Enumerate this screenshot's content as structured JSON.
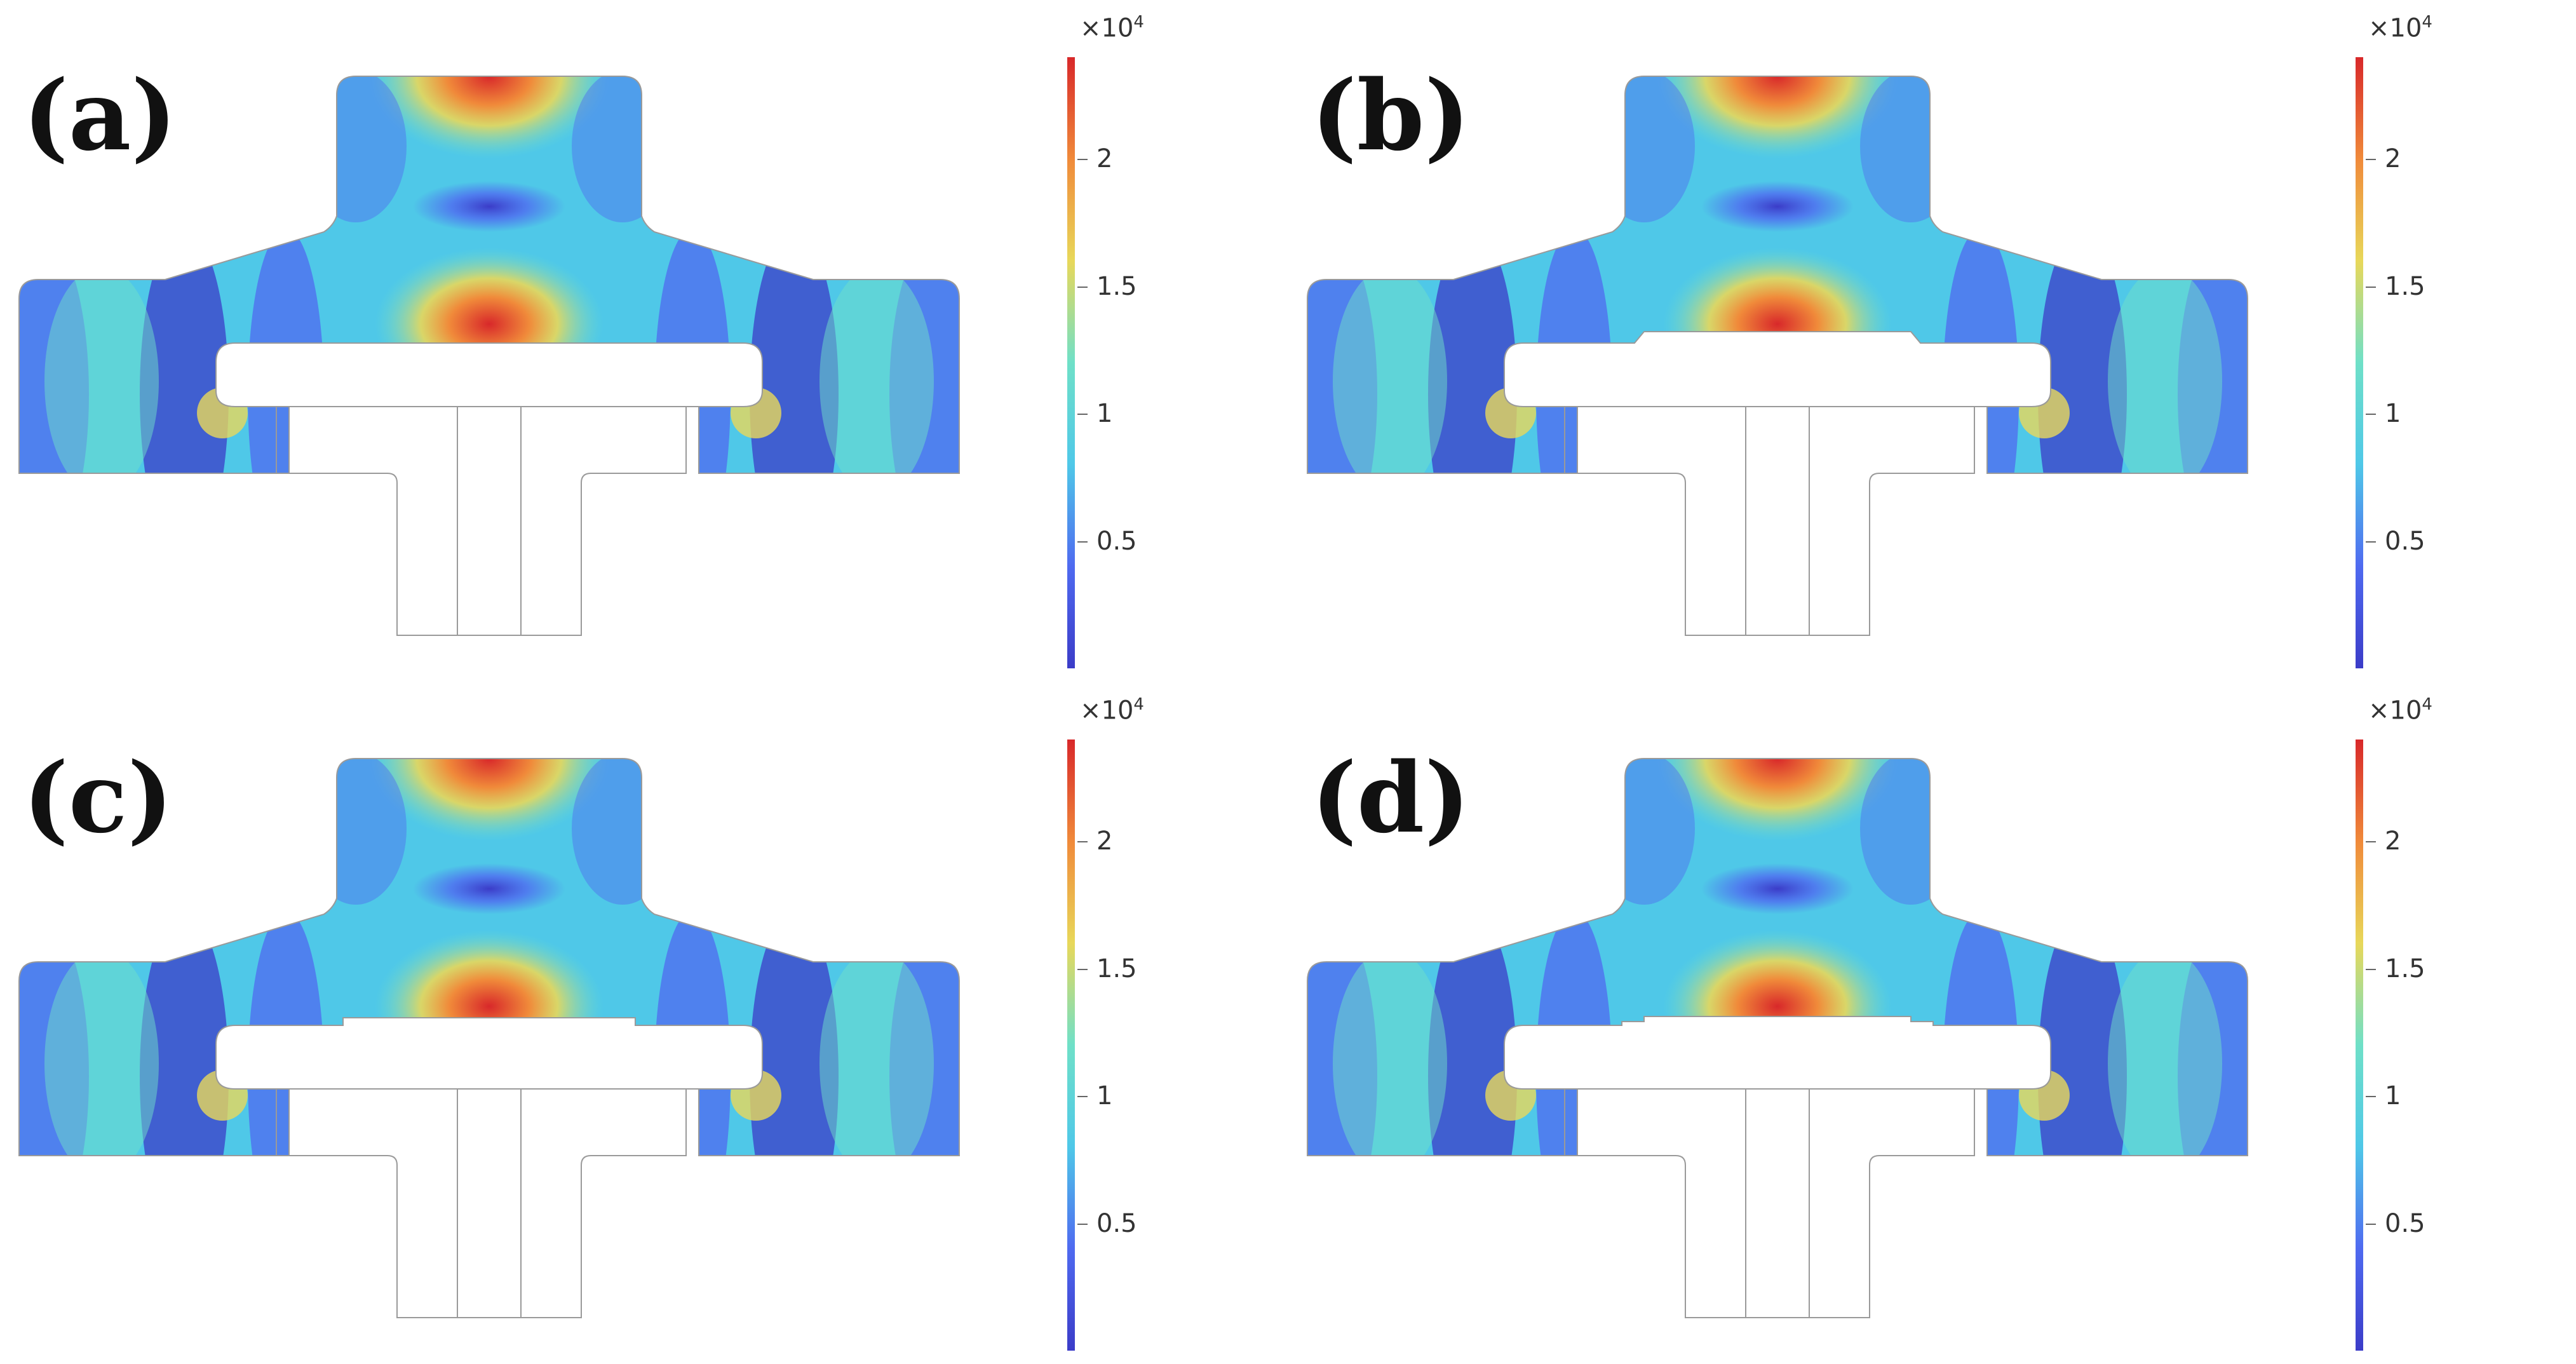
{
  "colorbar": {
    "multiplier_base": "×10",
    "multiplier_exp": "4",
    "ticks": [
      "2",
      "1.5",
      "1",
      "0.5"
    ],
    "tick_values": [
      2,
      1.5,
      1,
      0.5
    ],
    "range": [
      0.0,
      2.4
    ],
    "colors": [
      "#3b3cc8",
      "#4f6af0",
      "#4fc8e8",
      "#6fe0c8",
      "#e8d85a",
      "#f08a3a",
      "#d8282a"
    ]
  },
  "panels": [
    {
      "label": "(a)",
      "insert_variant": "none"
    },
    {
      "label": "(b)",
      "insert_variant": "chamfered-plate"
    },
    {
      "label": "(c)",
      "insert_variant": "flat-plate"
    },
    {
      "label": "(d)",
      "insert_variant": "stepped-plate"
    }
  ]
}
